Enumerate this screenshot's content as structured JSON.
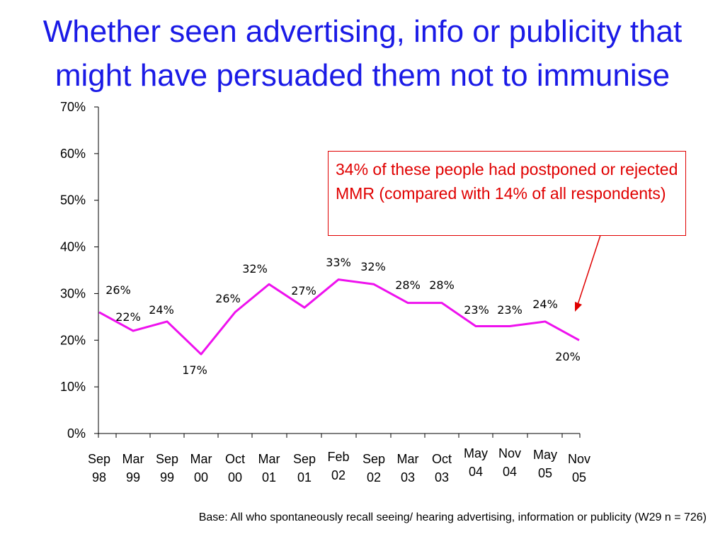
{
  "title": "Whether seen advertising, info or publicity that might have persuaded them not to immunise",
  "annotation": "34% of these people had postponed or rejected MMR (compared with 14% of all respondents)",
  "footnote": "Base: All who spontaneously recall seeing/ hearing advertising, information or publicity (W29  n = 726)",
  "colors": {
    "title": "#1a1ae6",
    "line": "#ee11ee",
    "annotation": "#e00000",
    "arrow": "#e00000"
  },
  "chart_data": {
    "type": "line",
    "title": "Whether seen advertising, info or publicity that might have persuaded them not to immunise",
    "ylim": [
      0,
      70
    ],
    "yticks": [
      "0%",
      "10%",
      "20%",
      "30%",
      "40%",
      "50%",
      "60%",
      "70%"
    ],
    "grid": false,
    "categories": [
      [
        "Sep",
        "98"
      ],
      [
        "Mar",
        "99"
      ],
      [
        "Sep",
        "99"
      ],
      [
        "Mar",
        "00"
      ],
      [
        "Oct",
        "00"
      ],
      [
        "Mar",
        "01"
      ],
      [
        "Sep",
        "01"
      ],
      [
        "Feb",
        "02"
      ],
      [
        "Sep",
        "02"
      ],
      [
        "Mar",
        "03"
      ],
      [
        "Oct",
        "03"
      ],
      [
        "May",
        "04"
      ],
      [
        "Nov",
        "04"
      ],
      [
        "May",
        "05"
      ],
      [
        "Nov",
        "05"
      ]
    ],
    "values": [
      26,
      22,
      24,
      17,
      26,
      32,
      27,
      33,
      32,
      28,
      28,
      23,
      23,
      24,
      20
    ],
    "value_labels": [
      "26%",
      "22%",
      "24%",
      "17%",
      "26%",
      "32%",
      "27%",
      "33%",
      "32%",
      "28%",
      "28%",
      "23%",
      "23%",
      "24%",
      "20%"
    ]
  }
}
